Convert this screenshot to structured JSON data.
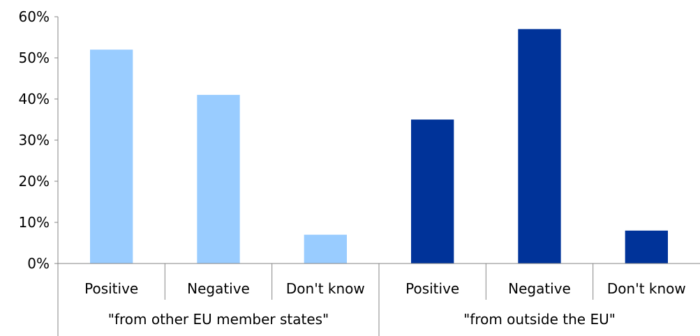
{
  "chart_data": {
    "type": "bar",
    "title": "",
    "xlabel": "",
    "ylabel": "",
    "ylim": [
      0,
      60
    ],
    "y_ticks": [
      "0%",
      "10%",
      "20%",
      "30%",
      "40%",
      "50%",
      "60%"
    ],
    "grid": false,
    "legend": "none",
    "categories": [
      "Positive",
      "Negative",
      "Don't know",
      "Positive",
      "Negative",
      "Don't know"
    ],
    "groups": [
      {
        "label": "\"from other EU member states\"",
        "categories": [
          "Positive",
          "Negative",
          "Don't know"
        ],
        "values": [
          52,
          41,
          7
        ],
        "color": "#99CCFF"
      },
      {
        "label": "\"from outside the EU\"",
        "categories": [
          "Positive",
          "Negative",
          "Don't know"
        ],
        "values": [
          35,
          57,
          8
        ],
        "color": "#003399"
      }
    ],
    "values": [
      52,
      41,
      7,
      35,
      57,
      8
    ]
  }
}
